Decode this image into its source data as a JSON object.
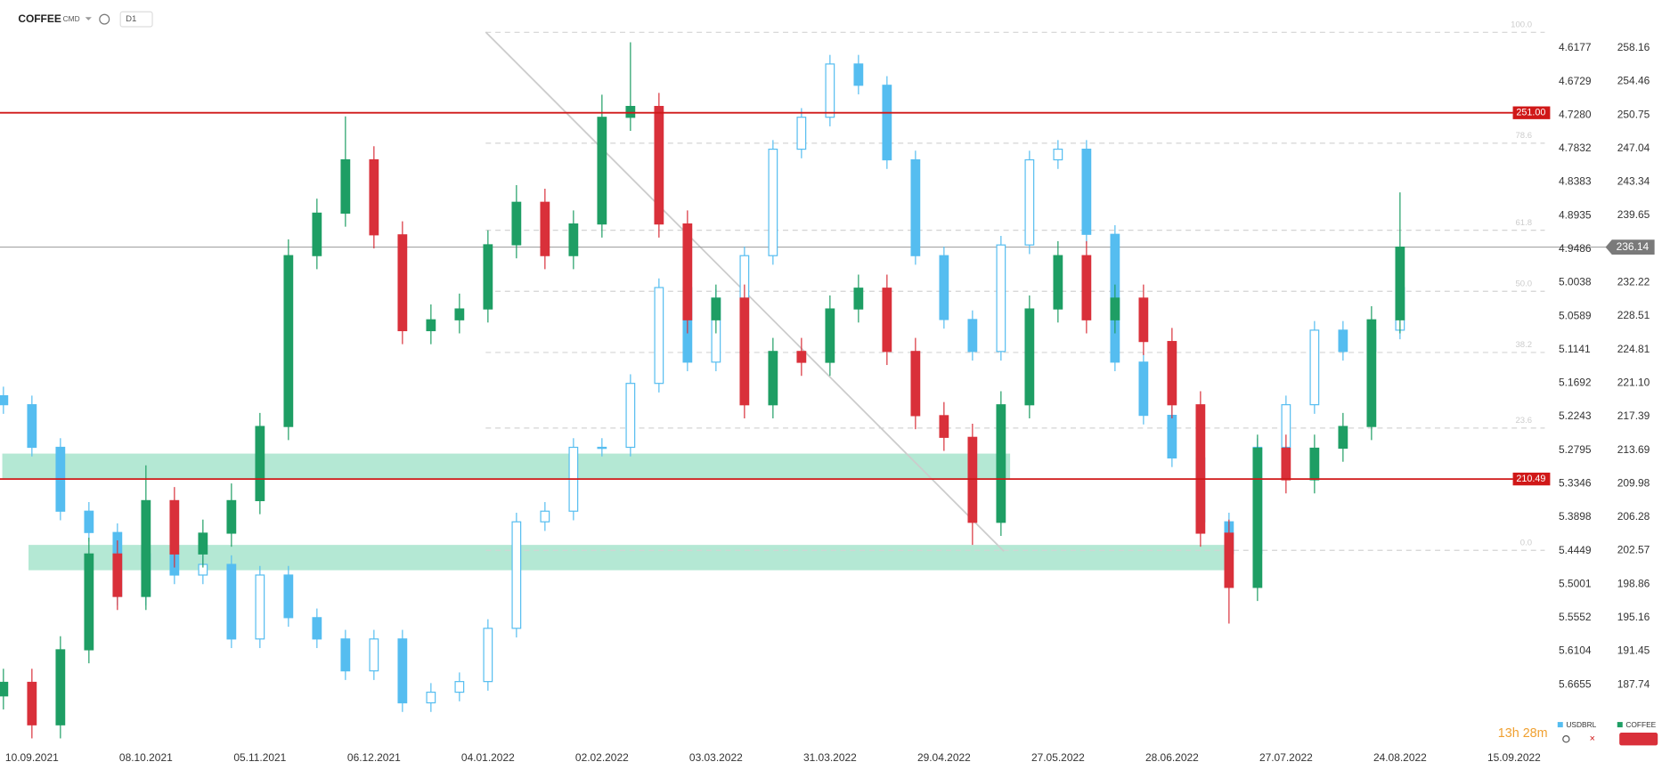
{
  "header": {
    "symbol": "COFFEE",
    "market": "CMD",
    "interval": "D1"
  },
  "timer": "13h 28m",
  "chart_data": {
    "type": "candlestick",
    "x": [
      -5,
      0,
      5,
      10,
      15,
      20,
      25,
      30,
      35,
      40,
      45,
      50,
      55,
      60,
      65,
      70,
      75,
      80,
      85,
      90,
      95,
      100,
      105,
      110,
      115,
      120,
      125,
      130,
      135,
      140,
      145,
      150,
      155,
      160,
      165,
      170,
      175,
      180,
      185,
      190,
      195,
      200,
      205,
      210,
      215,
      220,
      225,
      230,
      235,
      240
    ],
    "xlim": [
      -5.6,
      265.4
    ],
    "xticks": [
      {
        "value": 0,
        "label": "10.09.2021"
      },
      {
        "value": 20,
        "label": "08.10.2021"
      },
      {
        "value": 40,
        "label": "05.11.2021"
      },
      {
        "value": 60,
        "label": "06.12.2021"
      },
      {
        "value": 80,
        "label": "04.01.2022"
      },
      {
        "value": 100,
        "label": "02.02.2022"
      },
      {
        "value": 120,
        "label": "03.03.2022"
      },
      {
        "value": 140,
        "label": "31.03.2022"
      },
      {
        "value": 160,
        "label": "29.04.2022"
      },
      {
        "value": 180,
        "label": "27.05.2022"
      },
      {
        "value": 200,
        "label": "28.06.2022"
      },
      {
        "value": 220,
        "label": "27.07.2022"
      },
      {
        "value": 240,
        "label": "24.08.2022"
      },
      {
        "value": 260,
        "label": "15.09.2022"
      }
    ],
    "ylim": [
      181.02,
      261.7
    ],
    "yticks": [
      258.16,
      254.46,
      250.75,
      247.04,
      243.34,
      239.65,
      232.22,
      228.51,
      224.81,
      {
        "value": 221.1,
        "label": "221.10"
      },
      217.39,
      213.69,
      209.98,
      206.28,
      202.57,
      198.86,
      195.16,
      191.45,
      187.74
    ],
    "y2lim": [
      5.7654,
      4.5651
    ],
    "y2ticks": [
      4.6177,
      4.6729,
      {
        "value": 4.728,
        "label": "4.7280"
      },
      4.7832,
      4.8383,
      4.8935,
      4.9486,
      5.0038,
      5.0589,
      5.1141,
      5.1692,
      5.2243,
      5.2795,
      5.3346,
      5.3898,
      5.4449,
      5.5001,
      5.5552,
      5.6104,
      5.6655
    ],
    "series": [
      {
        "name": "USDBRL",
        "color": "#55bdf0",
        "axis": "y2",
        "open": [
          5.19,
          5.2047,
          5.2748,
          5.3799,
          5.415,
          5.5201,
          5.45,
          5.485,
          5.4675,
          5.5902,
          5.485,
          5.5551,
          5.5902,
          5.6427,
          5.5902,
          5.6953,
          5.6778,
          5.6603,
          5.5727,
          5.3974,
          5.3799,
          5.2748,
          5.2748,
          5.1696,
          5.0119,
          5.1346,
          5.0294,
          4.9594,
          4.7842,
          4.7316,
          4.644,
          4.679,
          4.8017,
          4.9594,
          5.0645,
          5.1171,
          4.9418,
          4.8017,
          4.7842,
          4.9243,
          5.1346,
          5.2222,
          5.2923,
          5.3974,
          5.45,
          5.2748,
          5.2047,
          5.082,
          5.1171,
          5.082
        ],
        "high": [
          5.2197,
          5.2898,
          5.3949,
          5.43,
          5.5351,
          5.5351,
          5.5,
          5.5,
          5.6052,
          5.6052,
          5.5701,
          5.6052,
          5.6577,
          5.6577,
          5.7103,
          5.7103,
          5.6928,
          5.6753,
          5.5877,
          5.4124,
          5.3949,
          5.2898,
          5.2898,
          5.1846,
          5.1496,
          5.1496,
          5.0444,
          4.9744,
          4.7992,
          4.7466,
          4.694,
          4.8167,
          4.9744,
          5.0795,
          5.1321,
          5.1321,
          4.9568,
          4.8167,
          4.9393,
          5.1496,
          5.2372,
          5.3073,
          5.4124,
          5.465,
          5.465,
          5.2898,
          5.2197,
          5.1321,
          5.1321,
          5.097
        ],
        "low": [
          5.175,
          5.1897,
          5.2598,
          5.3649,
          5.4,
          5.435,
          5.435,
          5.4525,
          5.4525,
          5.47,
          5.47,
          5.5401,
          5.5752,
          5.5752,
          5.5752,
          5.6628,
          5.6453,
          5.5577,
          5.3824,
          5.3649,
          5.2598,
          5.2598,
          5.1546,
          4.9969,
          4.9969,
          5.0144,
          4.9444,
          4.7692,
          4.7166,
          4.629,
          4.629,
          4.664,
          4.7867,
          4.9444,
          5.0495,
          4.9268,
          4.7867,
          4.7692,
          4.7692,
          4.9093,
          5.1196,
          5.2072,
          5.2773,
          5.3824,
          5.2598,
          5.1897,
          5.067,
          5.067,
          5.067,
          4.9969
        ],
        "close": [
          5.2047,
          5.2748,
          5.3799,
          5.415,
          5.5201,
          5.45,
          5.485,
          5.4675,
          5.5902,
          5.485,
          5.5551,
          5.5902,
          5.6427,
          5.5902,
          5.6953,
          5.6778,
          5.6603,
          5.5727,
          5.3974,
          5.3799,
          5.2748,
          5.2748,
          5.1696,
          5.0119,
          5.1346,
          5.0294,
          4.9594,
          4.7842,
          4.7316,
          4.644,
          4.679,
          4.8017,
          4.9594,
          5.0645,
          5.1171,
          4.9418,
          4.8017,
          4.7842,
          4.9243,
          5.1346,
          5.2222,
          5.2923,
          5.3974,
          5.45,
          5.2748,
          5.2047,
          5.082,
          5.1171,
          5.082,
          5.0119
        ]
      },
      {
        "name": "COFFEE",
        "color": "#1e9e64",
        "down_color": "#d9303a",
        "open": [
          186.5,
          188.0,
          183.3,
          191.6,
          202.2,
          197.5,
          208.1,
          202.2,
          204.5,
          208.1,
          216.3,
          235.2,
          239.9,
          245.8,
          237.5,
          226.9,
          228.1,
          229.3,
          236.4,
          241.1,
          235.2,
          238.7,
          250.5,
          251.7,
          238.7,
          228.1,
          230.5,
          218.7,
          224.6,
          223.4,
          229.3,
          231.6,
          224.6,
          217.5,
          215.1,
          205.7,
          218.7,
          229.3,
          235.2,
          228.1,
          230.5,
          225.7,
          218.7,
          204.5,
          198.5,
          213.9,
          210.4,
          213.9,
          216.3,
          228.1
        ],
        "high": [
          189.5,
          189.5,
          193.1,
          204.0,
          203.7,
          212.0,
          209.6,
          206.0,
          210.0,
          217.8,
          237.0,
          241.5,
          250.6,
          247.3,
          239.0,
          229.8,
          231.0,
          238.0,
          243.0,
          242.6,
          240.2,
          253.0,
          258.8,
          253.2,
          240.2,
          232.0,
          232.0,
          226.1,
          226.1,
          230.8,
          233.1,
          233.1,
          226.1,
          219.0,
          216.6,
          220.2,
          230.8,
          236.8,
          236.8,
          232.0,
          232.0,
          227.2,
          220.2,
          206.0,
          215.4,
          215.4,
          215.4,
          217.8,
          229.6,
          242.2
        ],
        "low": [
          185.0,
          181.8,
          181.8,
          190.1,
          196.0,
          196.0,
          200.7,
          200.7,
          203.0,
          206.6,
          214.8,
          233.7,
          238.4,
          236.0,
          225.4,
          225.4,
          226.6,
          227.8,
          234.9,
          233.7,
          233.7,
          237.2,
          249.0,
          237.2,
          226.6,
          226.6,
          217.2,
          217.2,
          221.9,
          221.9,
          227.8,
          223.1,
          216.0,
          213.6,
          203.2,
          204.2,
          217.2,
          227.8,
          226.6,
          226.6,
          224.2,
          217.2,
          203.0,
          194.5,
          197.0,
          208.9,
          208.9,
          212.4,
          214.8,
          226.6
        ],
        "close": [
          188.0,
          183.3,
          191.6,
          202.2,
          197.5,
          208.1,
          202.2,
          204.5,
          208.1,
          216.3,
          235.2,
          239.9,
          245.8,
          237.5,
          226.9,
          228.1,
          229.3,
          236.4,
          241.1,
          235.2,
          238.7,
          250.5,
          251.7,
          238.7,
          228.1,
          230.5,
          218.7,
          224.6,
          223.4,
          229.3,
          231.6,
          224.6,
          217.5,
          215.1,
          205.7,
          218.7,
          229.3,
          235.2,
          228.1,
          230.5,
          225.7,
          218.7,
          204.5,
          198.5,
          213.9,
          210.4,
          213.9,
          216.3,
          228.1,
          236.14
        ]
      }
    ],
    "levels": [
      {
        "value": 251,
        "label": "251.00",
        "color": "#d01818"
      },
      {
        "value": 210.49,
        "label": "210.49",
        "color": "#d01818"
      }
    ],
    "last_price": 236.14,
    "zones": [
      {
        "from": 210.4,
        "to": 213.3,
        "x": [
          -5.2,
          171.6
        ],
        "color": "#b4e8d4"
      },
      {
        "from": 200.4,
        "to": 203.2,
        "x": [
          -0.6,
          209.3
        ],
        "color": "#b4e8d4"
      }
    ],
    "trendline": {
      "x": [
        79.6,
        170.5
      ],
      "y": [
        259.93,
        202.5
      ]
    },
    "fibonacci": {
      "from": 202.6,
      "to": 259.9,
      "x": 79.6,
      "levels": [
        {
          "value": 100,
          "label": "100.0"
        },
        78.6,
        61.8,
        {
          "value": 50,
          "label": "50.0"
        },
        38.2,
        23.6,
        {
          "value": 0,
          "label": "0.0"
        }
      ]
    },
    "legend": "bottom-right"
  }
}
